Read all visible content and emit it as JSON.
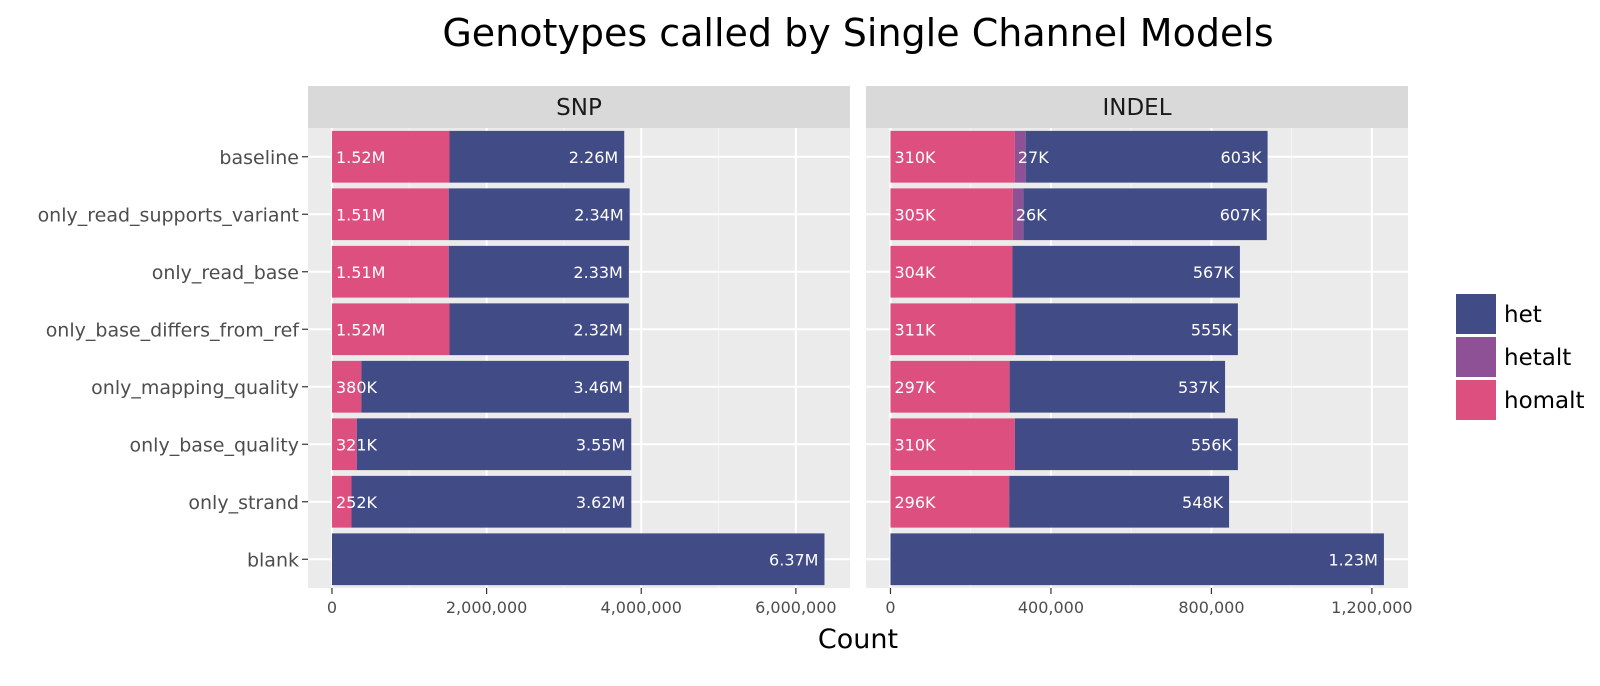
{
  "chart_data": {
    "type": "bar",
    "orientation": "horizontal",
    "stacked": true,
    "title": "Genotypes called by Single Channel Models",
    "xlabel": "Count",
    "ylabel": "",
    "categories": [
      "baseline",
      "only_read_supports_variant",
      "only_read_base",
      "only_base_differs_from_ref",
      "only_mapping_quality",
      "only_base_quality",
      "only_strand",
      "blank"
    ],
    "legend": {
      "position": "right",
      "entries": [
        {
          "name": "het",
          "color": "#414b85"
        },
        {
          "name": "hetalt",
          "color": "#8e5196"
        },
        {
          "name": "homalt",
          "color": "#dc4f7f"
        }
      ]
    },
    "grid": true,
    "panels": [
      {
        "label": "SNP",
        "xlim": [
          -310000,
          6700000
        ],
        "ticks": [
          0,
          2000000,
          4000000,
          6000000
        ],
        "tick_labels": [
          "0",
          "2,000,000",
          "4,000,000",
          "6,000,000"
        ],
        "series": [
          {
            "name": "homalt",
            "values": [
              1520000,
              1510000,
              1510000,
              1520000,
              380000,
              321000,
              252000,
              0
            ],
            "labels": [
              "1.52M",
              "1.51M",
              "1.51M",
              "1.52M",
              "380K",
              "321K",
              "252K",
              ""
            ]
          },
          {
            "name": "hetalt",
            "values": [
              0,
              0,
              0,
              0,
              0,
              0,
              0,
              0
            ],
            "labels": [
              "",
              "",
              "",
              "",
              "",
              "",
              "",
              ""
            ]
          },
          {
            "name": "het",
            "values": [
              2260000,
              2340000,
              2330000,
              2320000,
              3460000,
              3550000,
              3620000,
              6370000
            ],
            "labels": [
              "2.26M",
              "2.34M",
              "2.33M",
              "2.32M",
              "3.46M",
              "3.55M",
              "3.62M",
              "6.37M"
            ]
          }
        ]
      },
      {
        "label": "INDEL",
        "xlim": [
          -61000,
          1290000
        ],
        "ticks": [
          0,
          400000,
          800000,
          1200000
        ],
        "tick_labels": [
          "0",
          "400,000",
          "800,000",
          "1,200,000"
        ],
        "series": [
          {
            "name": "homalt",
            "values": [
              310000,
              305000,
              304000,
              311000,
              297000,
              310000,
              296000,
              0
            ],
            "labels": [
              "310K",
              "305K",
              "304K",
              "311K",
              "297K",
              "310K",
              "296K",
              ""
            ]
          },
          {
            "name": "hetalt",
            "values": [
              27000,
              26000,
              0,
              0,
              0,
              0,
              0,
              0
            ],
            "labels": [
              "27K",
              "26K",
              "",
              "",
              "",
              "",
              "",
              ""
            ]
          },
          {
            "name": "het",
            "values": [
              603000,
              607000,
              567000,
              555000,
              537000,
              556000,
              548000,
              1230000
            ],
            "labels": [
              "603K",
              "607K",
              "567K",
              "555K",
              "537K",
              "556K",
              "548K",
              "1.23M"
            ]
          }
        ]
      }
    ]
  }
}
